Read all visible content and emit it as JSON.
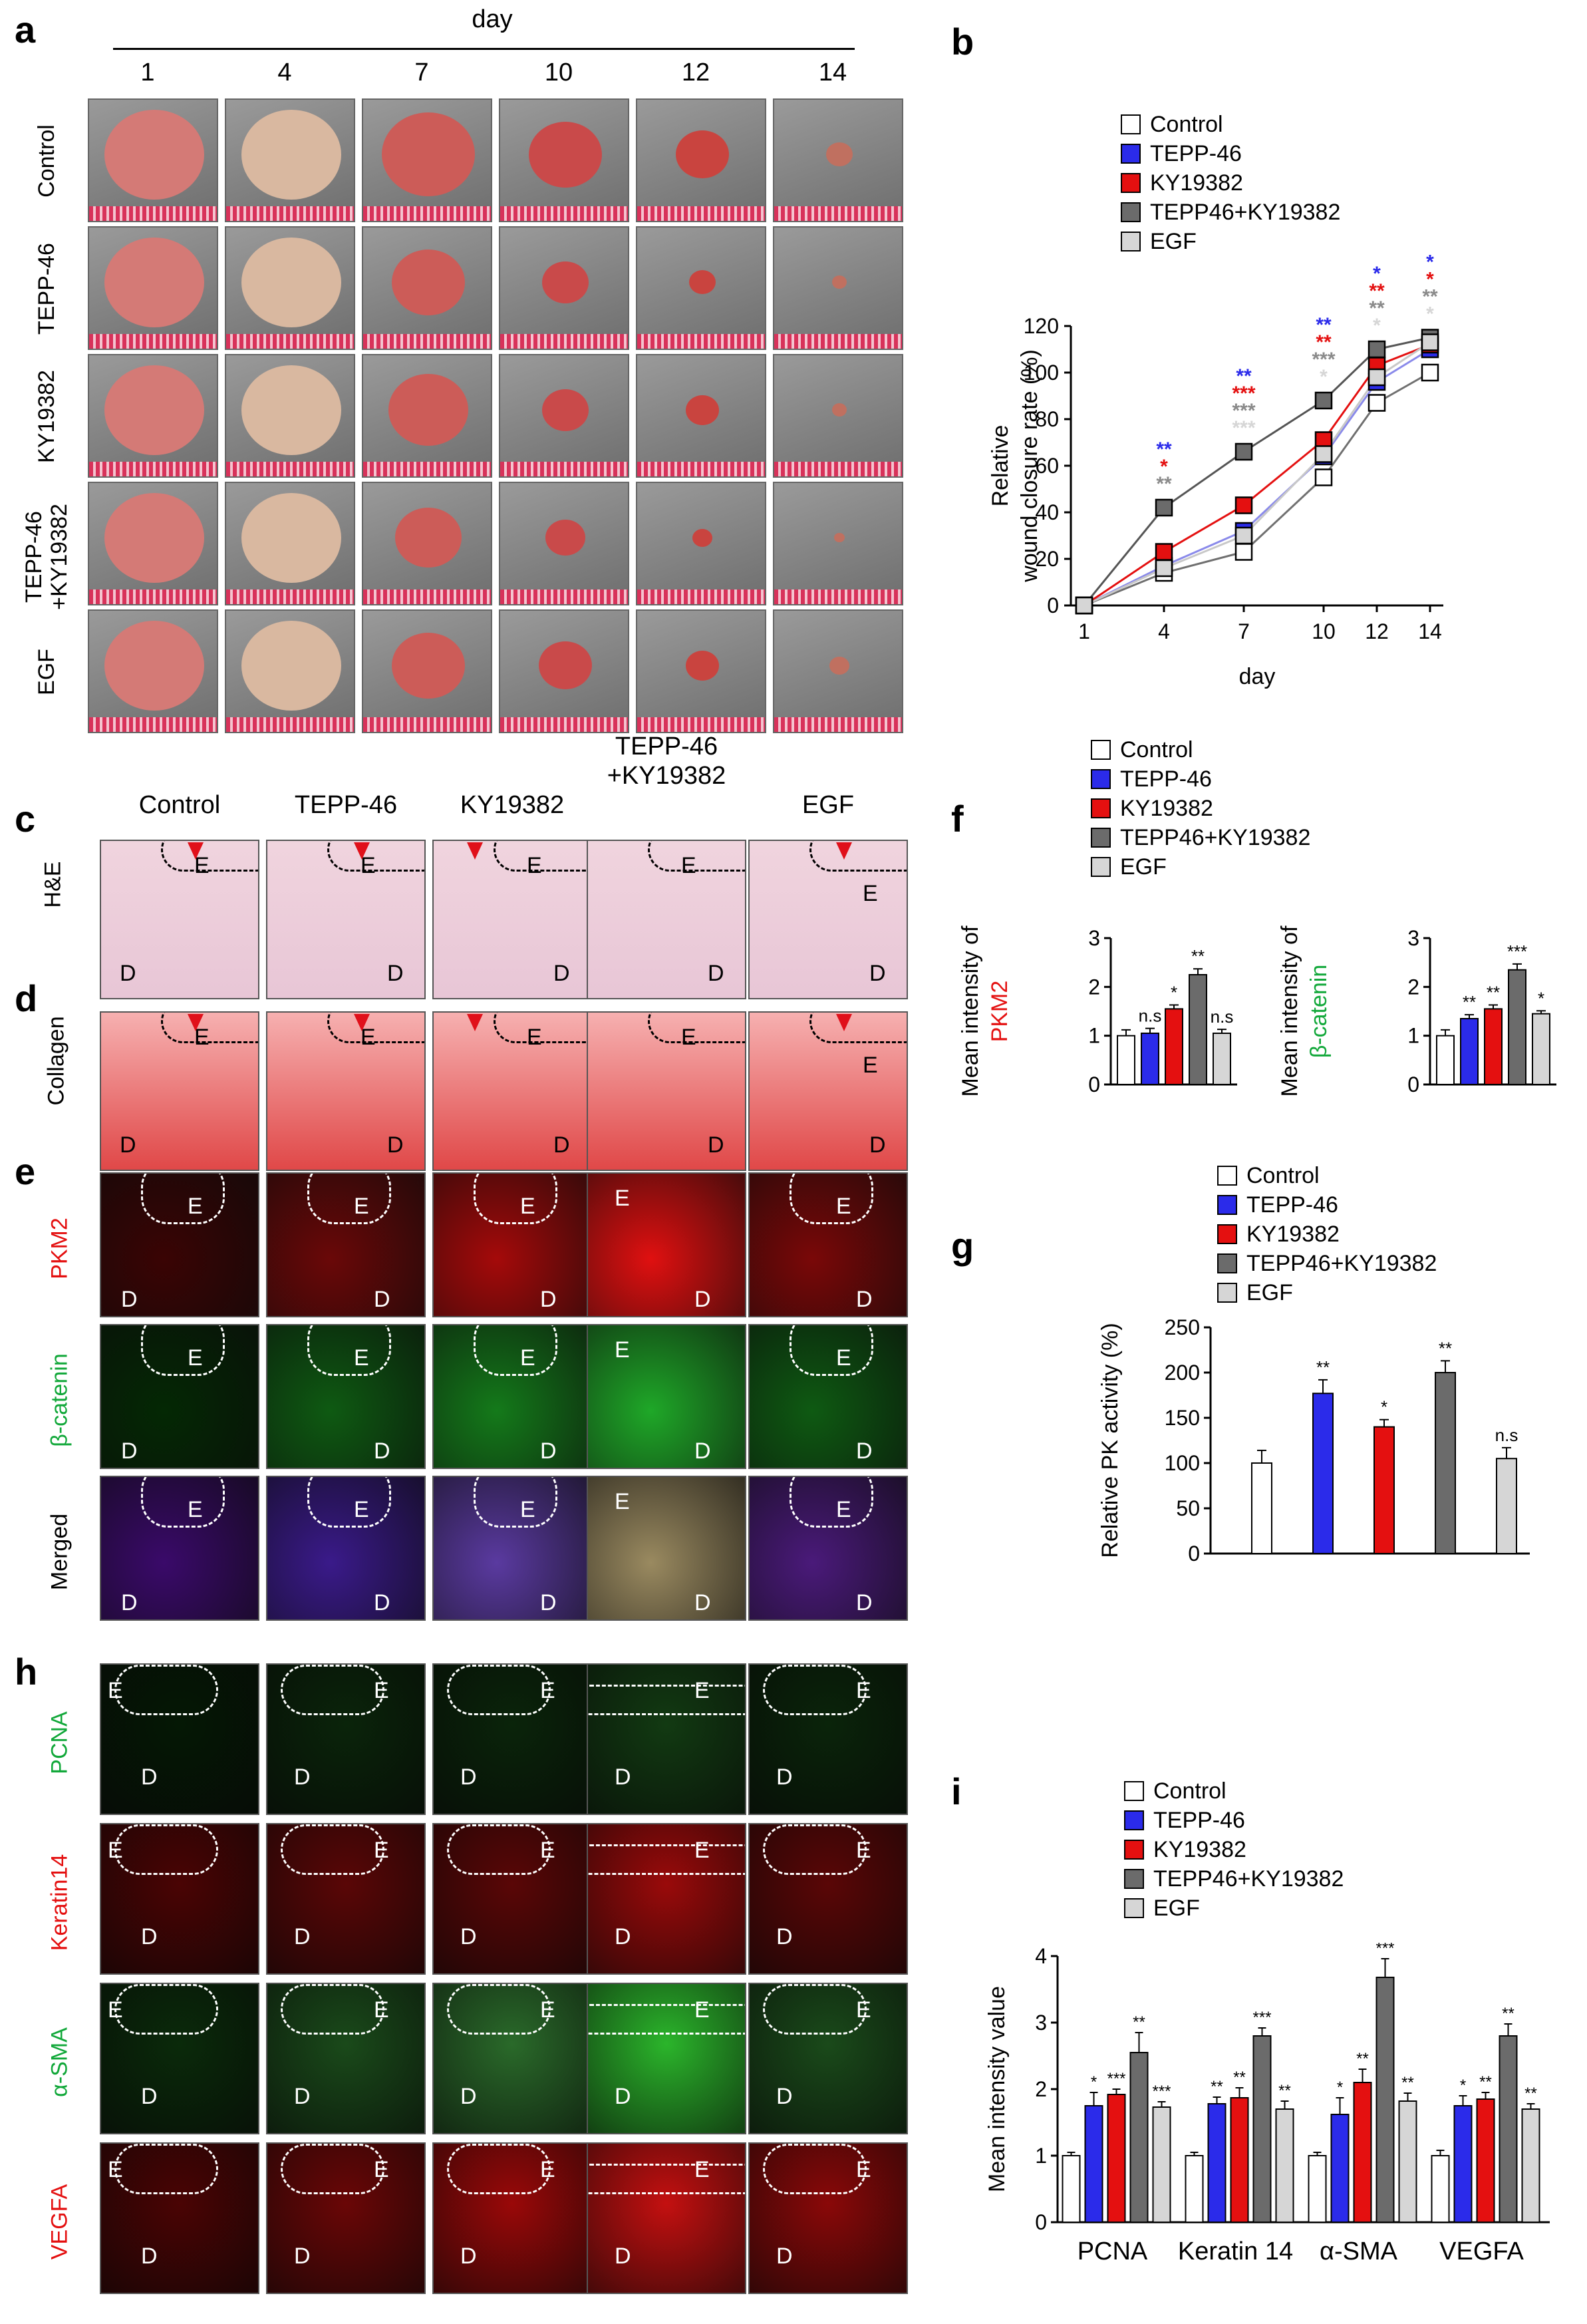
{
  "panels": {
    "a": "a",
    "b": "b",
    "c": "c",
    "d": "d",
    "e": "e",
    "f": "f",
    "g": "g",
    "h": "h",
    "i": "i"
  },
  "panel_a": {
    "day_header": "day",
    "days": [
      "1",
      "4",
      "7",
      "10",
      "12",
      "14"
    ],
    "rows": [
      "Control",
      "TEPP-46",
      "KY19382",
      "TEPP-46\n+KY19382",
      "EGF"
    ]
  },
  "legend": [
    "Control",
    "TEPP-46",
    "KY19382",
    "TEPP46+KY19382",
    "EGF"
  ],
  "colors": {
    "Control": "#ffffff",
    "TEPP-46": "#2b2bea",
    "KY19382": "#e41010",
    "TEPP46+KY19382": "#6b6b6b",
    "EGF": "#d6d6d6"
  },
  "panel_cd": {
    "columns": [
      "Control",
      "TEPP-46",
      "KY19382",
      "TEPP-46\n+KY19382",
      "EGF"
    ],
    "row_c": "H&E",
    "row_d": "Collagen",
    "E": "E",
    "D": "D"
  },
  "panel_e": {
    "rows": [
      "PKM2",
      "β-catenin",
      "Merged"
    ],
    "row_colors": [
      "#e41010",
      "#12a83a",
      "#000000"
    ]
  },
  "panel_h": {
    "rows": [
      "PCNA",
      "Keratin14",
      "α-SMA",
      "VEGFA"
    ],
    "row_colors": [
      "#12a83a",
      "#e41010",
      "#12a83a",
      "#e41010"
    ]
  },
  "chart_data": [
    {
      "id": "b",
      "type": "line",
      "x": [
        1,
        4,
        7,
        10,
        12,
        14
      ],
      "xlabel": "day",
      "ylabel": "Relative\nwound closure rate (%)",
      "ylim": [
        0,
        120
      ],
      "yticks": [
        0,
        20,
        40,
        60,
        80,
        100,
        120
      ],
      "series": [
        {
          "name": "Control",
          "values": [
            0,
            14,
            23,
            55,
            87,
            100
          ]
        },
        {
          "name": "TEPP-46",
          "values": [
            0,
            17,
            32,
            64,
            96,
            110
          ]
        },
        {
          "name": "KY19382",
          "values": [
            0,
            23,
            43,
            71,
            103,
            112
          ]
        },
        {
          "name": "TEPP46+KY19382",
          "values": [
            0,
            42,
            66,
            88,
            110,
            115
          ]
        },
        {
          "name": "EGF",
          "values": [
            0,
            16,
            30,
            65,
            98,
            113
          ]
        }
      ],
      "annotations": [
        {
          "x": 4,
          "marks": [
            [
              "**",
              "#2b2bea"
            ],
            [
              "*",
              "#e41010"
            ],
            [
              "**",
              "#8a8a8a"
            ]
          ]
        },
        {
          "x": 7,
          "marks": [
            [
              "**",
              "#2b2bea"
            ],
            [
              "***",
              "#e41010"
            ],
            [
              "***",
              "#8a8a8a"
            ],
            [
              "***",
              "#d6d6d6"
            ]
          ]
        },
        {
          "x": 10,
          "marks": [
            [
              "**",
              "#2b2bea"
            ],
            [
              "**",
              "#e41010"
            ],
            [
              "***",
              "#8a8a8a"
            ],
            [
              "*",
              "#d6d6d6"
            ]
          ]
        },
        {
          "x": 12,
          "marks": [
            [
              "*",
              "#2b2bea"
            ],
            [
              "**",
              "#e41010"
            ],
            [
              "**",
              "#8a8a8a"
            ],
            [
              "*",
              "#d6d6d6"
            ]
          ]
        },
        {
          "x": 14,
          "marks": [
            [
              "*",
              "#2b2bea"
            ],
            [
              "*",
              "#e41010"
            ],
            [
              "**",
              "#8a8a8a"
            ],
            [
              "*",
              "#d6d6d6"
            ]
          ]
        }
      ]
    },
    {
      "id": "f1",
      "type": "bar",
      "categories": [
        "Control",
        "TEPP-46",
        "KY19382",
        "TEPP46+KY19382",
        "EGF"
      ],
      "values": [
        1.0,
        1.05,
        1.55,
        2.25,
        1.05
      ],
      "errors": [
        0.12,
        0.1,
        0.08,
        0.12,
        0.08
      ],
      "sig": [
        "",
        "n.s",
        "*",
        "**",
        "n.s"
      ],
      "ylabel_1": "Mean intensity of",
      "ylabel_2": "PKM2",
      "ylim": [
        0,
        3
      ],
      "yticks": [
        0,
        1,
        2,
        3
      ]
    },
    {
      "id": "f2",
      "type": "bar",
      "categories": [
        "Control",
        "TEPP-46",
        "KY19382",
        "TEPP46+KY19382",
        "EGF"
      ],
      "values": [
        1.0,
        1.35,
        1.55,
        2.35,
        1.45
      ],
      "errors": [
        0.12,
        0.08,
        0.08,
        0.12,
        0.06
      ],
      "sig": [
        "",
        "**",
        "**",
        "***",
        "*"
      ],
      "ylabel_1": "Mean intensity of",
      "ylabel_2": "β-catenin",
      "ylim": [
        0,
        3
      ],
      "yticks": [
        0,
        1,
        2,
        3
      ]
    },
    {
      "id": "g",
      "type": "bar",
      "categories": [
        "Control",
        "TEPP-46",
        "KY19382",
        "TEPP46+KY19382",
        "EGF"
      ],
      "values": [
        100,
        177,
        140,
        200,
        105
      ],
      "errors": [
        14,
        15,
        8,
        13,
        12
      ],
      "sig": [
        "",
        "**",
        "*",
        "**",
        "n.s"
      ],
      "ylabel": "Relative PK activity (%)",
      "ylim": [
        0,
        250
      ],
      "yticks": [
        0,
        50,
        100,
        150,
        200,
        250
      ]
    },
    {
      "id": "i",
      "type": "bar",
      "categories": [
        "PCNA",
        "Keratin 14",
        "α-SMA",
        "VEGFA"
      ],
      "series": [
        {
          "name": "Control",
          "values": [
            1.0,
            1.0,
            1.0,
            1.0
          ],
          "errors": [
            0.05,
            0.05,
            0.05,
            0.08
          ],
          "sig": [
            "",
            "",
            "",
            ""
          ]
        },
        {
          "name": "TEPP-46",
          "values": [
            1.75,
            1.78,
            1.62,
            1.75
          ],
          "errors": [
            0.2,
            0.1,
            0.25,
            0.15
          ],
          "sig": [
            "*",
            "**",
            "*",
            "*"
          ]
        },
        {
          "name": "KY19382",
          "values": [
            1.92,
            1.87,
            2.1,
            1.85
          ],
          "errors": [
            0.08,
            0.15,
            0.2,
            0.1
          ],
          "sig": [
            "***",
            "**",
            "**",
            "**"
          ]
        },
        {
          "name": "TEPP46+KY19382",
          "values": [
            2.55,
            2.8,
            3.68,
            2.8
          ],
          "errors": [
            0.3,
            0.12,
            0.28,
            0.18
          ],
          "sig": [
            "**",
            "***",
            "***",
            "**"
          ]
        },
        {
          "name": "EGF",
          "values": [
            1.73,
            1.7,
            1.82,
            1.7
          ],
          "errors": [
            0.08,
            0.12,
            0.12,
            0.08
          ],
          "sig": [
            "***",
            "**",
            "**",
            "**"
          ]
        }
      ],
      "ylabel": "Mean intensity value",
      "ylim": [
        0,
        4
      ],
      "yticks": [
        0,
        1,
        2,
        3,
        4
      ]
    }
  ]
}
